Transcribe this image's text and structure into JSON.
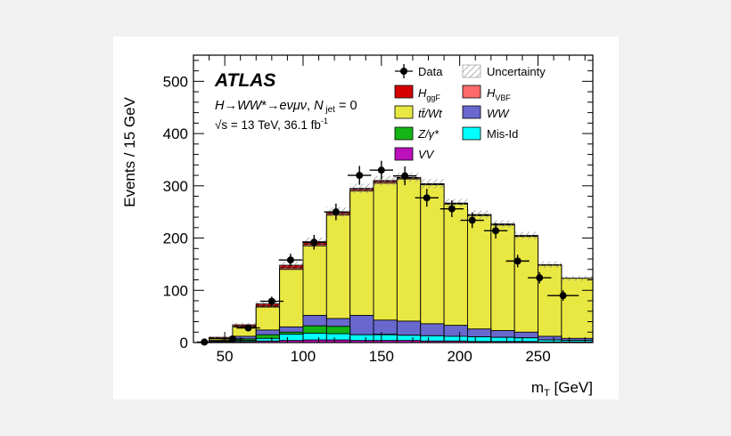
{
  "chart_data": {
    "type": "stacked-histogram",
    "experiment": "ATLAS",
    "process_label": "H→WW*→eνμν, N jet = 0",
    "energy_label": "√s = 13 TeV, 36.1 fb⁻¹",
    "xlabel": "m_T [GeV]",
    "ylabel": "Events / 15 GeV",
    "xlim": [
      30,
      285
    ],
    "ylim": [
      0,
      550
    ],
    "x_ticks": [
      50,
      100,
      150,
      200,
      250
    ],
    "y_ticks": [
      0,
      100,
      200,
      300,
      400,
      500
    ],
    "bin_edges": [
      30,
      40,
      55,
      70,
      85,
      100,
      115,
      130,
      145,
      160,
      175,
      190,
      205,
      220,
      235,
      250,
      265,
      285
    ],
    "stack_order": [
      "VV",
      "Mis-Id",
      "Z/γ*",
      "WW",
      "tt̄/Wt",
      "HVBF",
      "HggF"
    ],
    "stack_totals": {
      "VV": [
        0,
        1,
        2,
        3,
        4,
        5,
        5,
        4,
        4,
        4,
        3,
        3,
        2,
        2,
        2,
        1,
        1
      ],
      "Mis-Id": [
        0,
        2,
        4,
        8,
        16,
        18,
        17,
        15,
        15,
        14,
        13,
        12,
        11,
        10,
        9,
        5,
        4
      ],
      "Z/γ*": [
        0,
        3,
        7,
        15,
        20,
        32,
        31,
        15,
        16,
        14,
        13,
        12,
        11,
        10,
        9,
        5,
        4
      ],
      "WW": [
        0,
        4,
        12,
        24,
        30,
        52,
        46,
        52,
        43,
        41,
        36,
        33,
        26,
        23,
        20,
        12,
        8
      ],
      "tt̄/Wt": [
        0,
        7,
        30,
        68,
        140,
        185,
        244,
        290,
        305,
        313,
        302,
        265,
        243,
        225,
        203,
        148,
        123
      ],
      "HVBF": [
        0,
        8,
        31,
        70,
        143,
        188,
        247,
        293,
        308,
        315,
        303,
        266,
        244,
        226,
        204,
        148,
        123
      ],
      "HggF": [
        0,
        10,
        34,
        74,
        148,
        193,
        250,
        295,
        310,
        316,
        304,
        267,
        245,
        227,
        205,
        149,
        123
      ]
    },
    "uncertainty": [
      0,
      2,
      4,
      5,
      7,
      8,
      9,
      9,
      9,
      9,
      9,
      8,
      8,
      7,
      7,
      6,
      5
    ],
    "data": {
      "x": [
        37,
        55,
        65,
        80,
        92,
        107,
        121,
        136,
        150,
        165,
        179,
        195,
        208,
        223,
        237,
        251,
        266
      ],
      "y": [
        1,
        7,
        28,
        79,
        158,
        192,
        250,
        320,
        330,
        319,
        277,
        256,
        234,
        214,
        156,
        124,
        90
      ],
      "yerr": [
        1,
        3,
        5,
        9,
        12,
        14,
        16,
        18,
        18,
        18,
        17,
        16,
        15,
        15,
        12,
        11,
        10
      ]
    },
    "legend": [
      {
        "key": "data",
        "label": "Data",
        "color": "#000000"
      },
      {
        "key": "unc",
        "label": "Uncertainty",
        "color": "#999999"
      },
      {
        "key": "ggf",
        "label": "HggF",
        "color": "#d40000"
      },
      {
        "key": "vbf",
        "label": "HVBF",
        "color": "#ff6b6b"
      },
      {
        "key": "tt",
        "label": "tt̄/Wt",
        "color": "#e9e842"
      },
      {
        "key": "ww",
        "label": "WW",
        "color": "#6868cf"
      },
      {
        "key": "z",
        "label": "Z/γ*",
        "color": "#15b515"
      },
      {
        "key": "mis",
        "label": "Mis-Id",
        "color": "#00ffff"
      },
      {
        "key": "vv",
        "label": "VV",
        "color": "#bb11bb"
      }
    ],
    "colors": {
      "VV": "#bb11bb",
      "Mis-Id": "#00ffff",
      "Z/γ*": "#15b515",
      "WW": "#6868cf",
      "tt̄/Wt": "#e9e842",
      "HVBF": "#ff6b6b",
      "HggF": "#d40000"
    }
  }
}
